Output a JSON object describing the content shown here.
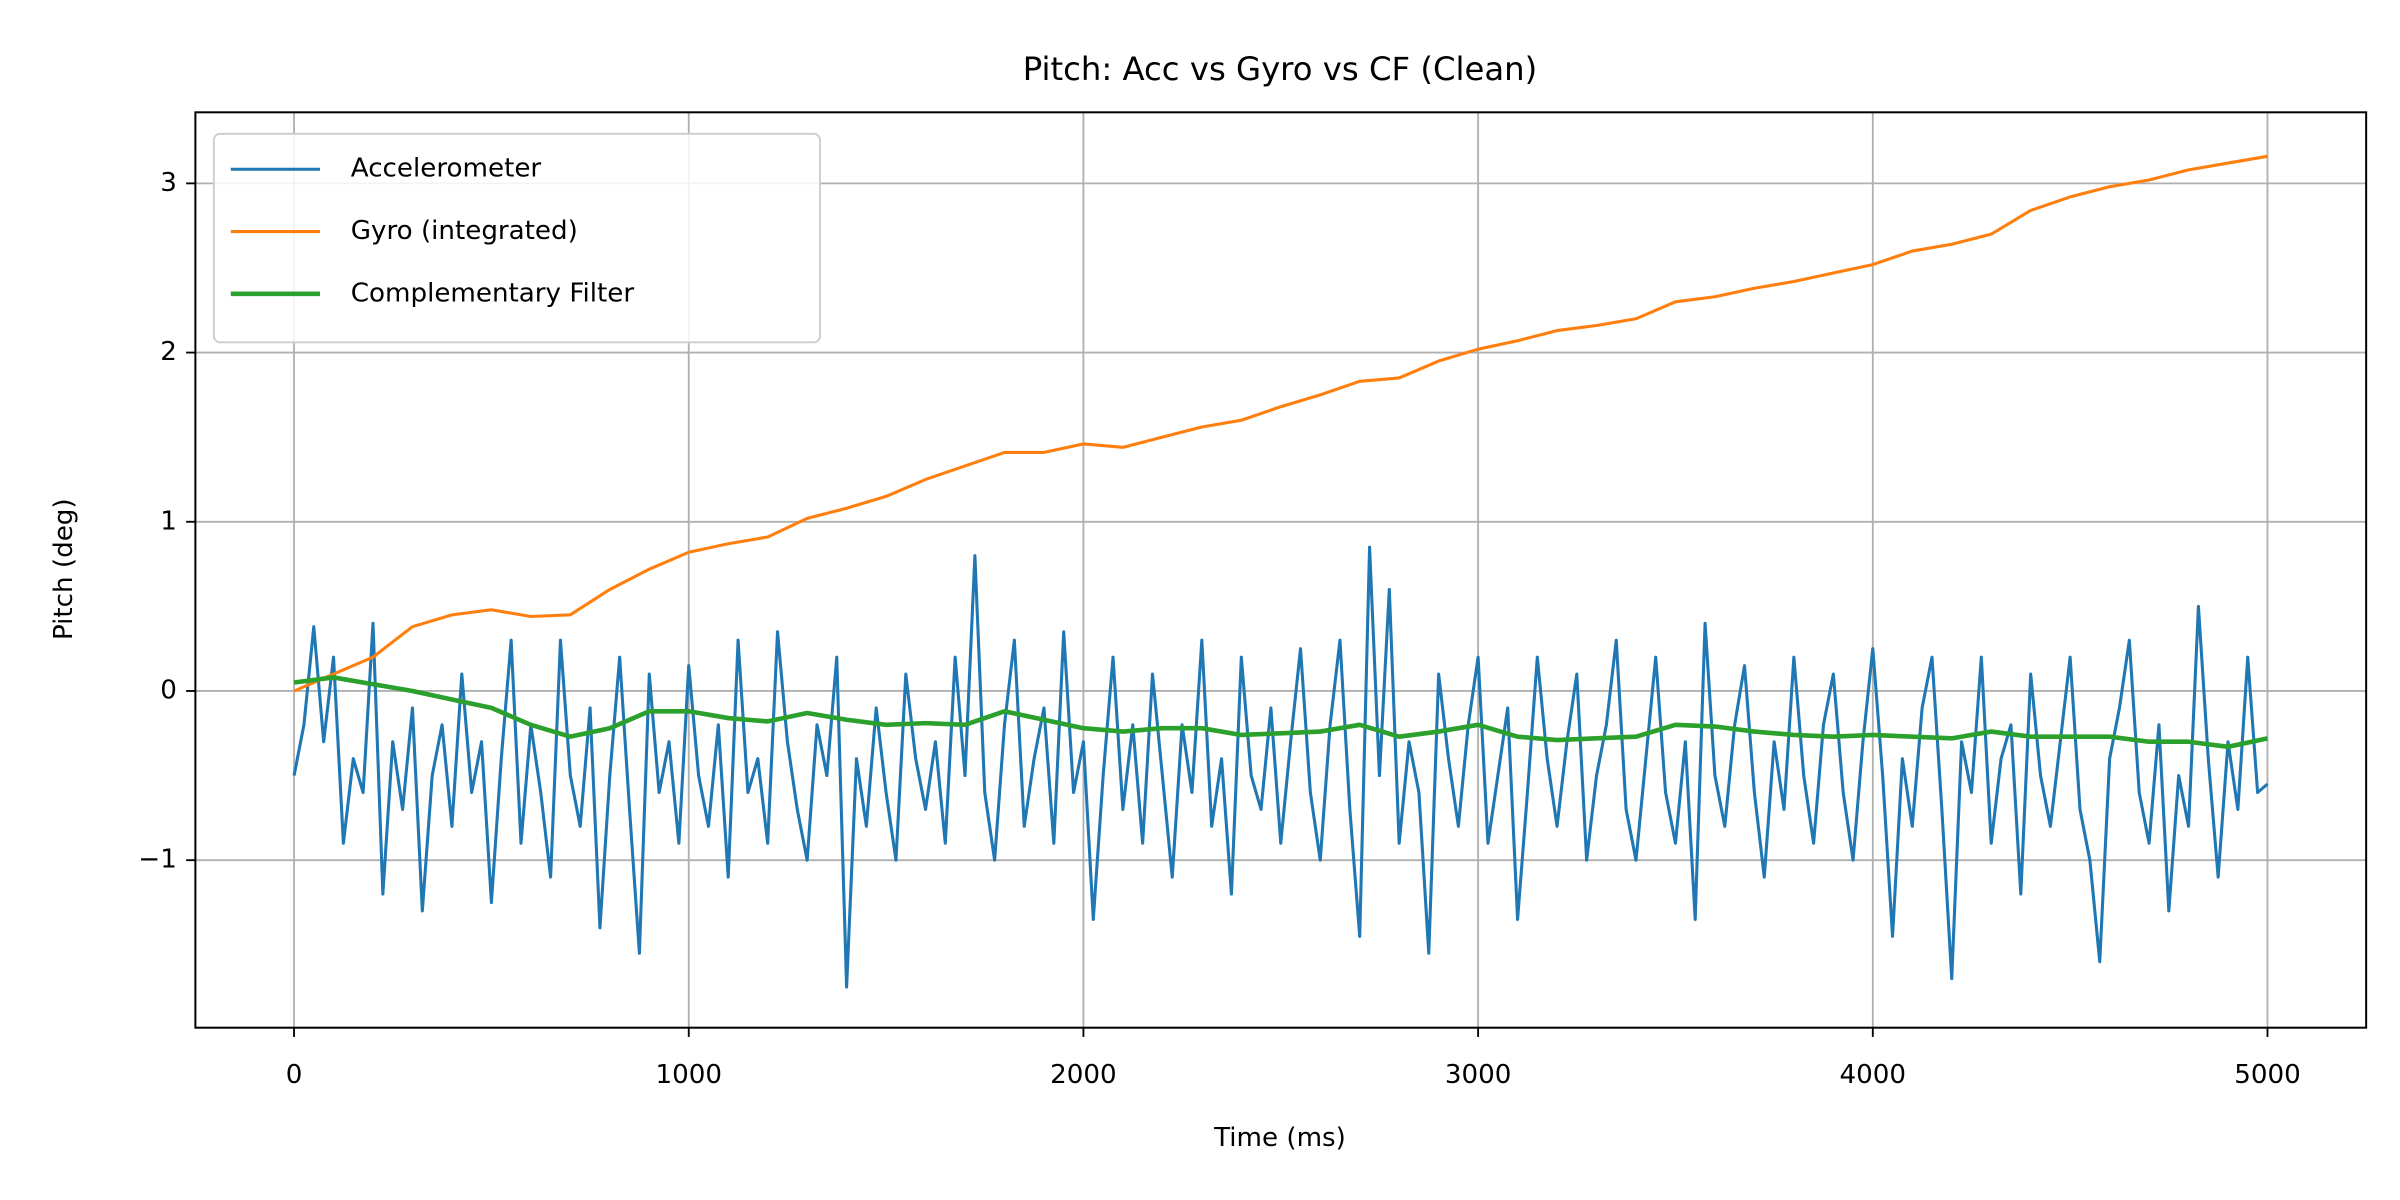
{
  "chart_data": {
    "type": "line",
    "title": "Pitch: Acc vs Gyro vs CF (Clean)",
    "x_label": "Time (ms)",
    "y_label": "Pitch (deg)",
    "xlim": [
      -250,
      5250
    ],
    "ylim": [
      -1.99,
      3.42
    ],
    "xticks": [
      0,
      1000,
      2000,
      3000,
      4000,
      5000
    ],
    "yticks": [
      {
        "value": -1,
        "label": "−1"
      },
      0,
      1,
      2,
      3
    ],
    "grid": true,
    "legend": "upper left",
    "series": [
      {
        "name": "Accelerometer",
        "color": "#1f77b4",
        "width": 2,
        "x": [
          0,
          25,
          50,
          75,
          100,
          125,
          150,
          175,
          200,
          225,
          250,
          275,
          300,
          325,
          350,
          375,
          400,
          425,
          450,
          475,
          500,
          525,
          550,
          575,
          600,
          625,
          650,
          675,
          700,
          725,
          750,
          775,
          800,
          825,
          850,
          875,
          900,
          925,
          950,
          975,
          1000,
          1025,
          1050,
          1075,
          1100,
          1125,
          1150,
          1175,
          1200,
          1225,
          1250,
          1275,
          1300,
          1325,
          1350,
          1375,
          1400,
          1425,
          1450,
          1475,
          1500,
          1525,
          1550,
          1575,
          1600,
          1625,
          1650,
          1675,
          1700,
          1725,
          1750,
          1775,
          1800,
          1825,
          1850,
          1875,
          1900,
          1925,
          1950,
          1975,
          2000,
          2025,
          2050,
          2075,
          2100,
          2125,
          2150,
          2175,
          2200,
          2225,
          2250,
          2275,
          2300,
          2325,
          2350,
          2375,
          2400,
          2425,
          2450,
          2475,
          2500,
          2525,
          2550,
          2575,
          2600,
          2625,
          2650,
          2675,
          2700,
          2725,
          2750,
          2775,
          2800,
          2825,
          2850,
          2875,
          2900,
          2925,
          2950,
          2975,
          3000,
          3025,
          3050,
          3075,
          3100,
          3125,
          3150,
          3175,
          3200,
          3225,
          3250,
          3275,
          3300,
          3325,
          3350,
          3375,
          3400,
          3425,
          3450,
          3475,
          3500,
          3525,
          3550,
          3575,
          3600,
          3625,
          3650,
          3675,
          3700,
          3725,
          3750,
          3775,
          3800,
          3825,
          3850,
          3875,
          3900,
          3925,
          3950,
          3975,
          4000,
          4025,
          4050,
          4075,
          4100,
          4125,
          4150,
          4175,
          4200,
          4225,
          4250,
          4275,
          4300,
          4325,
          4350,
          4375,
          4400,
          4425,
          4450,
          4475,
          4500,
          4525,
          4550,
          4575,
          4600,
          4625,
          4650,
          4675,
          4700,
          4725,
          4750,
          4775,
          4800,
          4825,
          4850,
          4875,
          4900,
          4925,
          4950,
          4975,
          5000
        ],
        "values": [
          -0.5,
          -0.2,
          0.38,
          -0.3,
          0.2,
          -0.9,
          -0.4,
          -0.6,
          0.4,
          -1.2,
          -0.3,
          -0.7,
          -0.1,
          -1.3,
          -0.5,
          -0.2,
          -0.8,
          0.1,
          -0.6,
          -0.3,
          -1.25,
          -0.4,
          0.3,
          -0.9,
          -0.2,
          -0.6,
          -1.1,
          0.3,
          -0.5,
          -0.8,
          -0.1,
          -1.4,
          -0.5,
          0.2,
          -0.7,
          -1.55,
          0.1,
          -0.6,
          -0.3,
          -0.9,
          0.15,
          -0.5,
          -0.8,
          -0.2,
          -1.1,
          0.3,
          -0.6,
          -0.4,
          -0.9,
          0.35,
          -0.3,
          -0.7,
          -1.0,
          -0.2,
          -0.5,
          0.2,
          -1.75,
          -0.4,
          -0.8,
          -0.1,
          -0.6,
          -1.0,
          0.1,
          -0.4,
          -0.7,
          -0.3,
          -0.9,
          0.2,
          -0.5,
          0.8,
          -0.6,
          -1.0,
          -0.2,
          0.3,
          -0.8,
          -0.4,
          -0.1,
          -0.9,
          0.35,
          -0.6,
          -0.3,
          -1.35,
          -0.5,
          0.2,
          -0.7,
          -0.2,
          -0.9,
          0.1,
          -0.5,
          -1.1,
          -0.2,
          -0.6,
          0.3,
          -0.8,
          -0.4,
          -1.2,
          0.2,
          -0.5,
          -0.7,
          -0.1,
          -0.9,
          -0.3,
          0.25,
          -0.6,
          -1.0,
          -0.2,
          0.3,
          -0.7,
          -1.45,
          0.85,
          -0.5,
          0.6,
          -0.9,
          -0.3,
          -0.6,
          -1.55,
          0.1,
          -0.4,
          -0.8,
          -0.2,
          0.2,
          -0.9,
          -0.5,
          -0.1,
          -1.35,
          -0.6,
          0.2,
          -0.4,
          -0.8,
          -0.3,
          0.1,
          -1.0,
          -0.5,
          -0.2,
          0.3,
          -0.7,
          -1.0,
          -0.4,
          0.2,
          -0.6,
          -0.9,
          -0.3,
          -1.35,
          0.4,
          -0.5,
          -0.8,
          -0.2,
          0.15,
          -0.6,
          -1.1,
          -0.3,
          -0.7,
          0.2,
          -0.5,
          -0.9,
          -0.2,
          0.1,
          -0.6,
          -1.0,
          -0.3,
          0.25,
          -0.5,
          -1.45,
          -0.4,
          -0.8,
          -0.1,
          0.2,
          -0.7,
          -1.7,
          -0.3,
          -0.6,
          0.2,
          -0.9,
          -0.4,
          -0.2,
          -1.2,
          0.1,
          -0.5,
          -0.8,
          -0.3,
          0.2,
          -0.7,
          -1.0,
          -1.6,
          -0.4,
          -0.1,
          0.3,
          -0.6,
          -0.9,
          -0.2,
          -1.3,
          -0.5,
          -0.8,
          0.5,
          -0.4,
          -1.1,
          -0.3,
          -0.7,
          0.2,
          -0.6,
          -0.55
        ]
      },
      {
        "name": "Gyro (integrated)",
        "color": "#ff7f0e",
        "width": 2,
        "x": [
          0,
          100,
          200,
          300,
          400,
          500,
          600,
          700,
          800,
          900,
          1000,
          1100,
          1200,
          1300,
          1400,
          1500,
          1600,
          1700,
          1800,
          1900,
          2000,
          2100,
          2200,
          2300,
          2400,
          2500,
          2600,
          2700,
          2800,
          2900,
          3000,
          3100,
          3200,
          3300,
          3400,
          3500,
          3600,
          3700,
          3800,
          3900,
          4000,
          4100,
          4200,
          4300,
          4400,
          4500,
          4600,
          4700,
          4800,
          4900,
          5000
        ],
        "values": [
          0.0,
          0.1,
          0.2,
          0.38,
          0.45,
          0.48,
          0.44,
          0.45,
          0.6,
          0.72,
          0.82,
          0.87,
          0.91,
          1.02,
          1.08,
          1.15,
          1.25,
          1.33,
          1.41,
          1.41,
          1.46,
          1.44,
          1.5,
          1.56,
          1.6,
          1.68,
          1.75,
          1.83,
          1.85,
          1.95,
          2.02,
          2.07,
          2.13,
          2.16,
          2.2,
          2.3,
          2.33,
          2.38,
          2.42,
          2.47,
          2.52,
          2.6,
          2.64,
          2.7,
          2.84,
          2.92,
          2.98,
          3.02,
          3.08,
          3.12,
          3.16
        ]
      },
      {
        "name": "Complementary Filter",
        "color": "#2ca02c",
        "width": 3,
        "x": [
          0,
          100,
          200,
          300,
          400,
          500,
          600,
          700,
          800,
          900,
          1000,
          1100,
          1200,
          1300,
          1400,
          1500,
          1600,
          1700,
          1800,
          1900,
          2000,
          2100,
          2200,
          2300,
          2400,
          2500,
          2600,
          2700,
          2800,
          2900,
          3000,
          3100,
          3200,
          3300,
          3400,
          3500,
          3600,
          3700,
          3800,
          3900,
          4000,
          4100,
          4200,
          4300,
          4400,
          4500,
          4600,
          4700,
          4800,
          4900,
          5000
        ],
        "values": [
          0.05,
          0.08,
          0.04,
          0.0,
          -0.05,
          -0.1,
          -0.2,
          -0.27,
          -0.22,
          -0.12,
          -0.12,
          -0.16,
          -0.18,
          -0.13,
          -0.17,
          -0.2,
          -0.19,
          -0.2,
          -0.12,
          -0.17,
          -0.22,
          -0.24,
          -0.22,
          -0.22,
          -0.26,
          -0.25,
          -0.24,
          -0.2,
          -0.27,
          -0.24,
          -0.2,
          -0.27,
          -0.29,
          -0.28,
          -0.27,
          -0.2,
          -0.21,
          -0.24,
          -0.26,
          -0.27,
          -0.26,
          -0.27,
          -0.28,
          -0.24,
          -0.27,
          -0.27,
          -0.27,
          -0.3,
          -0.3,
          -0.33,
          -0.28
        ]
      }
    ]
  }
}
